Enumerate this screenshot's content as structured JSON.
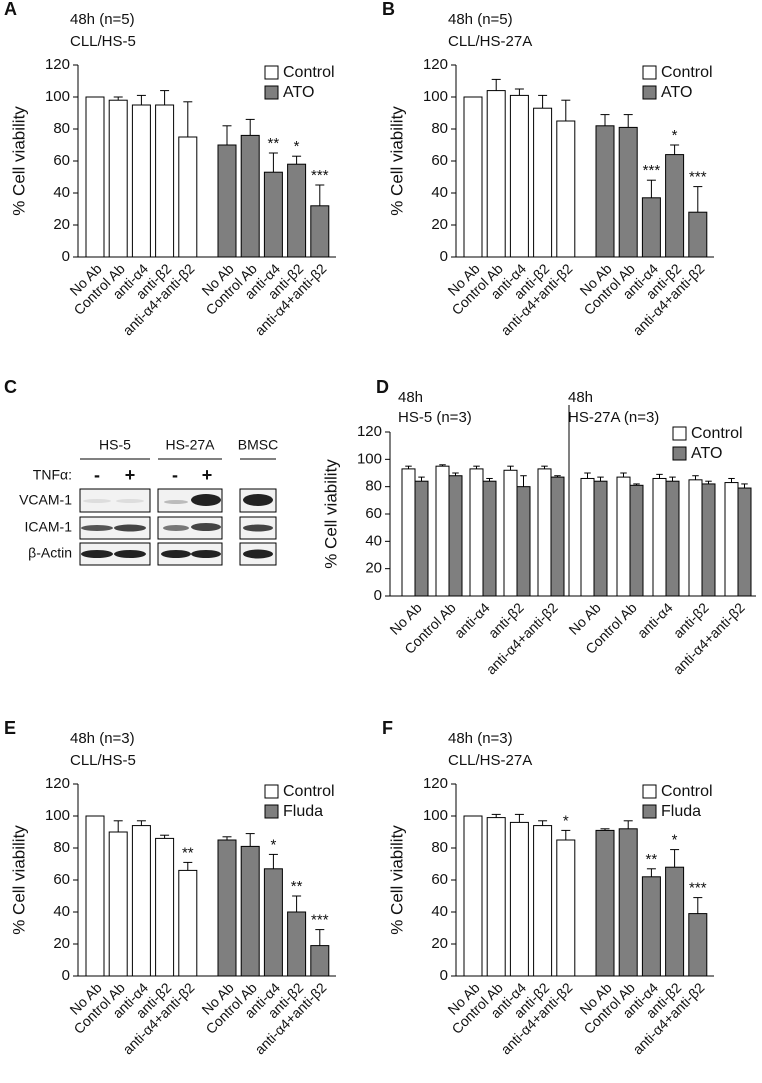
{
  "chart_data": [
    {
      "type": "bar",
      "panel_label": "A",
      "title": [
        "48h (n=5)",
        "CLL/HS-5"
      ],
      "y_label": "% Cell viability",
      "categories": [
        "No Ab",
        "Control Ab",
        "anti-α4",
        "anti-β2",
        "anti-α4+anti-β2",
        "No Ab",
        "Control Ab",
        "anti-α4",
        "anti-β2",
        "anti-α4+anti-β2"
      ],
      "series": [
        {
          "name": "Control",
          "color": "#ffffff",
          "values": [
            100,
            98,
            95,
            95,
            75,
            null,
            null,
            null,
            null,
            null
          ],
          "errors": [
            0,
            2,
            6,
            9,
            22,
            null,
            null,
            null,
            null,
            null
          ]
        },
        {
          "name": "ATO",
          "color": "#7f7f7f",
          "values": [
            null,
            null,
            null,
            null,
            null,
            70,
            76,
            53,
            58,
            32
          ],
          "errors": [
            null,
            null,
            null,
            null,
            null,
            12,
            10,
            12,
            5,
            13
          ]
        }
      ],
      "annotations": [
        null,
        null,
        null,
        null,
        null,
        null,
        null,
        "**",
        "*",
        "***"
      ],
      "ylim": [
        0,
        120
      ],
      "yticks": [
        0,
        20,
        40,
        60,
        80,
        100,
        120
      ]
    },
    {
      "type": "bar",
      "panel_label": "B",
      "title": [
        "48h (n=5)",
        "CLL/HS-27A"
      ],
      "y_label": "% Cell viability",
      "categories": [
        "No Ab",
        "Control Ab",
        "anti-α4",
        "anti-β2",
        "anti-α4+anti-β2",
        "No Ab",
        "Control Ab",
        "anti-α4",
        "anti-β2",
        "anti-α4+anti-β2"
      ],
      "series": [
        {
          "name": "Control",
          "color": "#ffffff",
          "values": [
            100,
            104,
            101,
            93,
            85,
            null,
            null,
            null,
            null,
            null
          ],
          "errors": [
            0,
            7,
            4,
            8,
            13,
            null,
            null,
            null,
            null,
            null
          ]
        },
        {
          "name": "ATO",
          "color": "#7f7f7f",
          "values": [
            null,
            null,
            null,
            null,
            null,
            82,
            81,
            37,
            64,
            28
          ],
          "errors": [
            null,
            null,
            null,
            null,
            null,
            7,
            8,
            11,
            6,
            16
          ]
        }
      ],
      "annotations": [
        null,
        null,
        null,
        null,
        null,
        null,
        null,
        "***",
        "*",
        "***"
      ],
      "ylim": [
        0,
        120
      ],
      "yticks": [
        0,
        20,
        40,
        60,
        80,
        100,
        120
      ]
    },
    {
      "type": "grouped_bar",
      "panel_label": "D",
      "panel_titles": [
        [
          "48h",
          "HS-5 (n=3)"
        ],
        [
          "48h",
          "HS-27A (n=3)"
        ]
      ],
      "y_label": "% Cell viability",
      "categories": [
        "No Ab",
        "Control Ab",
        "anti-α4",
        "anti-β2",
        "anti-α4+anti-β2",
        "No Ab",
        "Control Ab",
        "anti-α4",
        "anti-β2",
        "anti-α4+anti-β2"
      ],
      "series": [
        {
          "name": "Control",
          "color": "#ffffff",
          "values": [
            93,
            95,
            93,
            92,
            93,
            86,
            87,
            86,
            85,
            83
          ],
          "errors": [
            2,
            1,
            2,
            3,
            2,
            4,
            3,
            3,
            3,
            3
          ]
        },
        {
          "name": "ATO",
          "color": "#7f7f7f",
          "values": [
            84,
            88,
            84,
            80,
            87,
            84,
            81,
            84,
            82,
            79
          ],
          "errors": [
            3,
            2,
            2,
            8,
            1,
            3,
            1,
            3,
            2,
            3
          ]
        }
      ],
      "ylim": [
        0,
        120
      ],
      "yticks": [
        0,
        20,
        40,
        60,
        80,
        100,
        120
      ]
    },
    {
      "type": "bar",
      "panel_label": "E",
      "title": [
        "48h (n=3)",
        "CLL/HS-5"
      ],
      "y_label": "% Cell viability",
      "categories": [
        "No Ab",
        "Control Ab",
        "anti-α4",
        "anti-β2",
        "anti-α4+anti-β2",
        "No Ab",
        "Control Ab",
        "anti-α4",
        "anti-β2",
        "anti-α4+anti-β2"
      ],
      "series": [
        {
          "name": "Control",
          "color": "#ffffff",
          "values": [
            100,
            90,
            94,
            86,
            66,
            null,
            null,
            null,
            null,
            null
          ],
          "errors": [
            0,
            7,
            3,
            2,
            5,
            null,
            null,
            null,
            null,
            null
          ]
        },
        {
          "name": "Fluda",
          "color": "#7f7f7f",
          "values": [
            null,
            null,
            null,
            null,
            null,
            85,
            81,
            67,
            40,
            19
          ],
          "errors": [
            null,
            null,
            null,
            null,
            null,
            2,
            8,
            9,
            10,
            10
          ]
        }
      ],
      "annotations": [
        null,
        null,
        null,
        null,
        "**",
        null,
        null,
        "*",
        "**",
        "***"
      ],
      "ylim": [
        0,
        120
      ],
      "yticks": [
        0,
        20,
        40,
        60,
        80,
        100,
        120
      ]
    },
    {
      "type": "bar",
      "panel_label": "F",
      "title": [
        "48h (n=3)",
        "CLL/HS-27A"
      ],
      "y_label": "% Cell viability",
      "categories": [
        "No Ab",
        "Control Ab",
        "anti-α4",
        "anti-β2",
        "anti-α4+anti-β2",
        "No Ab",
        "Control Ab",
        "anti-α4",
        "anti-β2",
        "anti-α4+anti-β2"
      ],
      "series": [
        {
          "name": "Control",
          "color": "#ffffff",
          "values": [
            100,
            99,
            96,
            94,
            85,
            null,
            null,
            null,
            null,
            null
          ],
          "errors": [
            0,
            2,
            5,
            3,
            6,
            null,
            null,
            null,
            null,
            null
          ]
        },
        {
          "name": "Fluda",
          "color": "#7f7f7f",
          "values": [
            null,
            null,
            null,
            null,
            null,
            91,
            92,
            62,
            68,
            39
          ],
          "errors": [
            null,
            null,
            null,
            null,
            null,
            1,
            5,
            5,
            11,
            10
          ]
        }
      ],
      "annotations": [
        null,
        null,
        null,
        null,
        "*",
        null,
        null,
        "**",
        "*",
        "***"
      ],
      "ylim": [
        0,
        120
      ],
      "yticks": [
        0,
        20,
        40,
        60,
        80,
        100,
        120
      ]
    }
  ],
  "blot": {
    "panel_label": "C",
    "columns": [
      "HS-5",
      "HS-27A",
      "BMSC"
    ],
    "treatment_label": "TNFα:",
    "treatment": [
      "-",
      "+",
      "-",
      "+"
    ],
    "rows": [
      "VCAM-1",
      "ICAM-1",
      "β-Actin"
    ]
  }
}
